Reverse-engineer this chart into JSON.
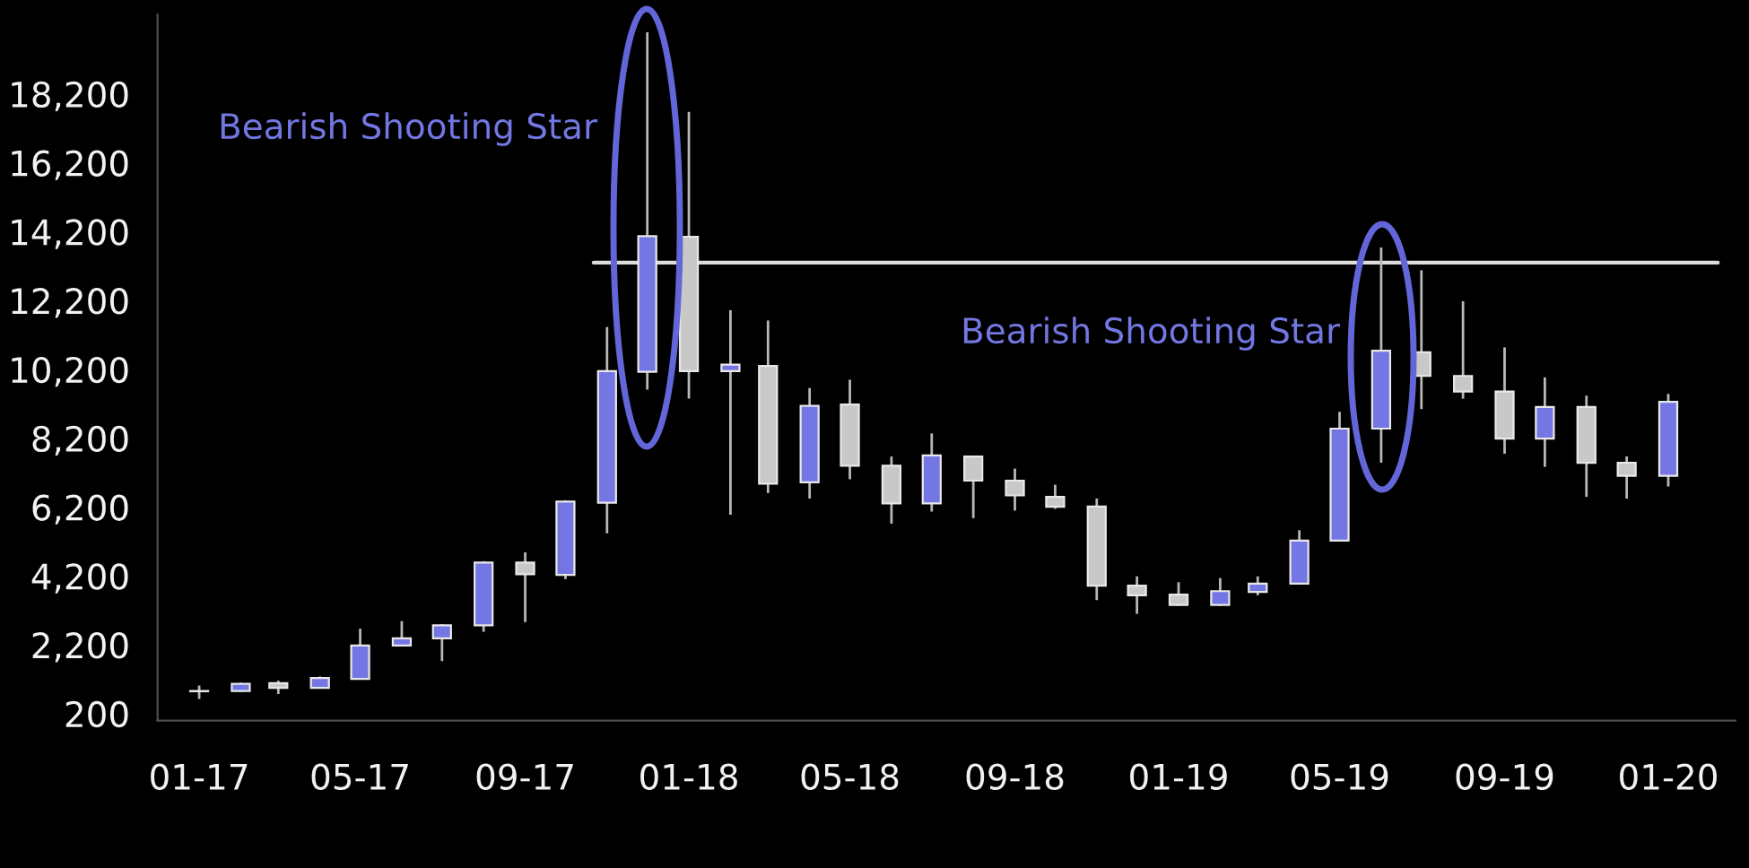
{
  "chart_data": {
    "type": "candlestick",
    "x": [
      "2017-01",
      "2017-02",
      "2017-03",
      "2017-04",
      "2017-05",
      "2017-06",
      "2017-07",
      "2017-08",
      "2017-09",
      "2017-10",
      "2017-11",
      "2017-12",
      "2018-01",
      "2018-02",
      "2018-03",
      "2018-04",
      "2018-05",
      "2018-06",
      "2018-07",
      "2018-08",
      "2018-09",
      "2018-10",
      "2018-11",
      "2018-12",
      "2019-01",
      "2019-02",
      "2019-03",
      "2019-04",
      "2019-05",
      "2019-06",
      "2019-07",
      "2019-08",
      "2019-09",
      "2019-10",
      "2019-11",
      "2019-12",
      "2020-01"
    ],
    "ohlc": [
      [
        860,
        1020,
        630,
        850
      ],
      [
        860,
        1100,
        840,
        1070
      ],
      [
        1090,
        1160,
        770,
        950
      ],
      [
        950,
        1280,
        930,
        1240
      ],
      [
        1210,
        2670,
        1210,
        2180
      ],
      [
        2180,
        2890,
        2160,
        2390
      ],
      [
        2390,
        2800,
        1730,
        2770
      ],
      [
        2770,
        4630,
        2580,
        4590
      ],
      [
        4590,
        4890,
        2860,
        4250
      ],
      [
        4230,
        6400,
        4110,
        6360
      ],
      [
        6330,
        11430,
        5440,
        10150
      ],
      [
        10130,
        19990,
        9610,
        14070
      ],
      [
        14050,
        17680,
        9350,
        10150
      ],
      [
        10150,
        11920,
        5980,
        10340
      ],
      [
        10300,
        11620,
        6610,
        6880
      ],
      [
        6920,
        9660,
        6450,
        9140
      ],
      [
        9180,
        9900,
        7010,
        7400
      ],
      [
        7400,
        7670,
        5720,
        6310
      ],
      [
        6310,
        8340,
        6070,
        7700
      ],
      [
        7670,
        7670,
        5880,
        6970
      ],
      [
        6970,
        7320,
        6100,
        6540
      ],
      [
        6500,
        6850,
        6150,
        6210
      ],
      [
        6220,
        6450,
        3500,
        3920
      ],
      [
        3920,
        4190,
        3100,
        3640
      ],
      [
        3660,
        4020,
        3330,
        3360
      ],
      [
        3360,
        4140,
        3330,
        3760
      ],
      [
        3740,
        4190,
        3640,
        3980
      ],
      [
        3980,
        5530,
        3980,
        5230
      ],
      [
        5230,
        8970,
        5230,
        8480
      ],
      [
        8480,
        13740,
        7490,
        10740
      ],
      [
        10700,
        13080,
        9050,
        10010
      ],
      [
        10010,
        12180,
        9350,
        9560
      ],
      [
        9560,
        10840,
        7750,
        8190
      ],
      [
        8190,
        9970,
        7370,
        9110
      ],
      [
        9110,
        9440,
        6500,
        7490
      ],
      [
        7490,
        7670,
        6450,
        7110
      ],
      [
        7110,
        9490,
        6800,
        9260
      ]
    ],
    "colors": [
      "#c8c8c8",
      "#7376e3",
      "#c8c8c8",
      "#7376e3",
      "#7376e3",
      "#7376e3",
      "#7376e3",
      "#7376e3",
      "#c8c8c8",
      "#7376e3",
      "#7376e3",
      "#7376e3",
      "#c8c8c8",
      "#7376e3",
      "#c8c8c8",
      "#7376e3",
      "#c8c8c8",
      "#c8c8c8",
      "#7376e3",
      "#c8c8c8",
      "#c8c8c8",
      "#c8c8c8",
      "#c8c8c8",
      "#c8c8c8",
      "#c8c8c8",
      "#7376e3",
      "#7376e3",
      "#7376e3",
      "#7376e3",
      "#7376e3",
      "#c8c8c8",
      "#c8c8c8",
      "#c8c8c8",
      "#7376e3",
      "#c8c8c8",
      "#c8c8c8",
      "#7376e3"
    ],
    "series": [
      {
        "type": "line",
        "x": [
          "2017-10-22",
          "2020-02-07"
        ],
        "values": [
          13300,
          13300
        ],
        "color": "#dcdcdc"
      }
    ],
    "xlim": [
      "2016-12-01",
      "2020-02-20"
    ],
    "xticks": [
      {
        "value": "2017-01",
        "label": "01-17"
      },
      {
        "value": "2017-05",
        "label": "05-17"
      },
      {
        "value": "2017-09",
        "label": "09-17"
      },
      {
        "value": "2018-01",
        "label": "01-18"
      },
      {
        "value": "2018-05",
        "label": "05-18"
      },
      {
        "value": "2018-09",
        "label": "09-18"
      },
      {
        "value": "2019-01",
        "label": "01-19"
      },
      {
        "value": "2019-05",
        "label": "05-19"
      },
      {
        "value": "2019-09",
        "label": "09-19"
      },
      {
        "value": "2020-01",
        "label": "01-20"
      }
    ],
    "ylim": [
      0,
      20500
    ],
    "yticks": [
      200,
      {
        "value": 2200,
        "label": "2,200"
      },
      {
        "value": 4200,
        "label": "4,200"
      },
      {
        "value": 6200,
        "label": "6,200"
      },
      {
        "value": 8200,
        "label": "8,200"
      },
      {
        "value": 10200,
        "label": "10,200"
      },
      {
        "value": 12200,
        "label": "12,200"
      },
      {
        "value": 14200,
        "label": "14,200"
      },
      {
        "value": 16200,
        "label": "16,200"
      },
      {
        "value": 18200,
        "label": "18,200"
      }
    ],
    "annotations": [
      "Bearish Shooting Star",
      "Bearish Shooting Star"
    ],
    "grid": false
  }
}
